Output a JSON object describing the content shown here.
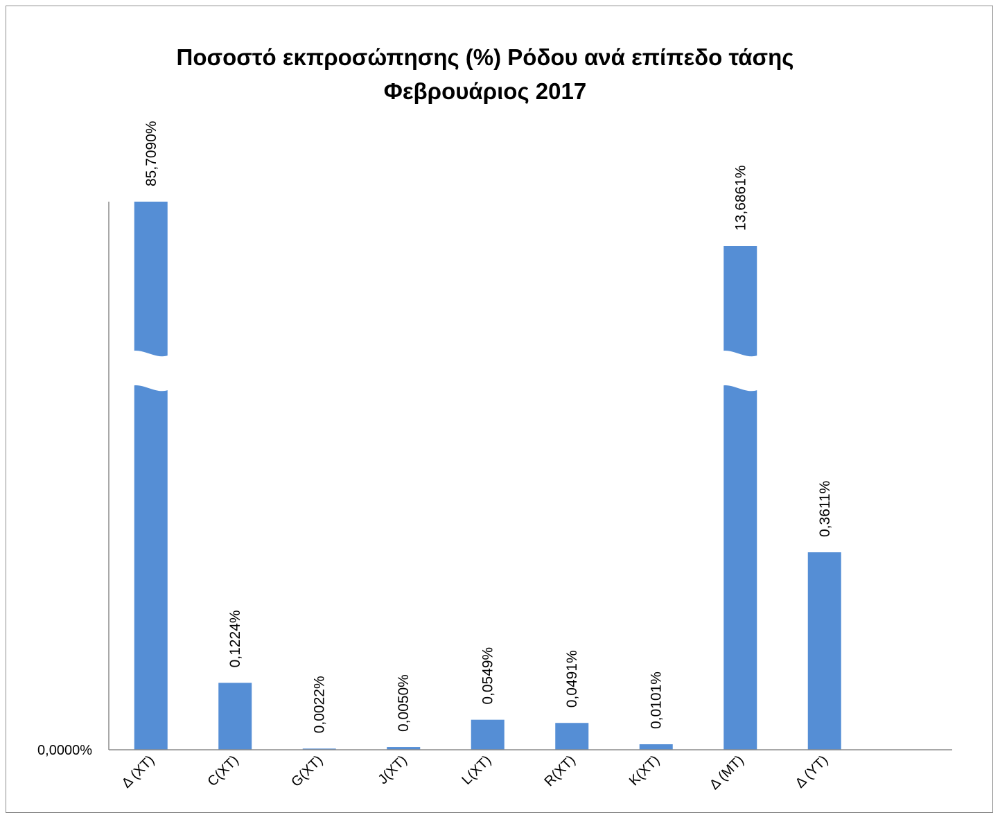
{
  "chart_data": {
    "type": "bar",
    "title": "Ποσοστό εκπροσώπησης (%) Ρόδου ανά επίπεδο τάσης",
    "subtitle": "Φεβρουάριος 2017",
    "categories": [
      "Δ (ΧΤ)",
      "C(ΧΤ)",
      "G(ΧΤ)",
      "J(ΧΤ)",
      "L(ΧΤ)",
      "R(ΧΤ)",
      "K(ΧΤ)",
      "Δ (ΜΤ)",
      "Δ (ΥΤ)"
    ],
    "values": [
      85.709,
      0.1224,
      0.0022,
      0.005,
      0.0549,
      0.0491,
      0.0101,
      13.6861,
      0.3611
    ],
    "data_labels": [
      "85,7090%",
      "0,1224%",
      "0,0022%",
      "0,0050%",
      "0,0549%",
      "0,0491%",
      "0,0101%",
      "13,6861%",
      "0,3611%"
    ],
    "broken_bars": [
      "Δ (ΧΤ)",
      "Δ (ΜΤ)"
    ],
    "y_axis_tick_labels": [
      "0,0000%"
    ],
    "xlabel": "",
    "ylabel": "",
    "grid": false,
    "legend": "none",
    "bar_color": "#558ed5"
  }
}
